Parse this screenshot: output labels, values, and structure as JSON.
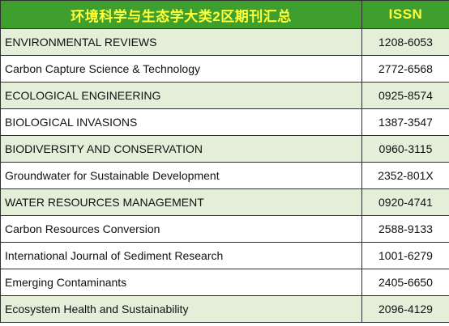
{
  "header": {
    "title": "环境科学与生态学大类2区期刊汇总",
    "issn_label": "ISSN"
  },
  "colors": {
    "header_bg": "#3f9f2e",
    "header_text": "#ffff3b",
    "row_alt_bg": "#e4efd9"
  },
  "rows": [
    {
      "name": "ENVIRONMENTAL REVIEWS",
      "issn": "1208-6053"
    },
    {
      "name": "Carbon Capture Science & Technology",
      "issn": "2772-6568"
    },
    {
      "name": "ECOLOGICAL ENGINEERING",
      "issn": "0925-8574"
    },
    {
      "name": "BIOLOGICAL INVASIONS",
      "issn": "1387-3547"
    },
    {
      "name": "BIODIVERSITY AND CONSERVATION",
      "issn": "0960-3115"
    },
    {
      "name": "Groundwater for Sustainable Development",
      "issn": "2352-801X"
    },
    {
      "name": "WATER RESOURCES MANAGEMENT",
      "issn": "0920-4741"
    },
    {
      "name": "Carbon Resources Conversion",
      "issn": "2588-9133"
    },
    {
      "name": "International Journal of Sediment Research",
      "issn": "1001-6279"
    },
    {
      "name": "Emerging Contaminants",
      "issn": "2405-6650"
    },
    {
      "name": "Ecosystem Health and Sustainability",
      "issn": "2096-4129"
    }
  ]
}
